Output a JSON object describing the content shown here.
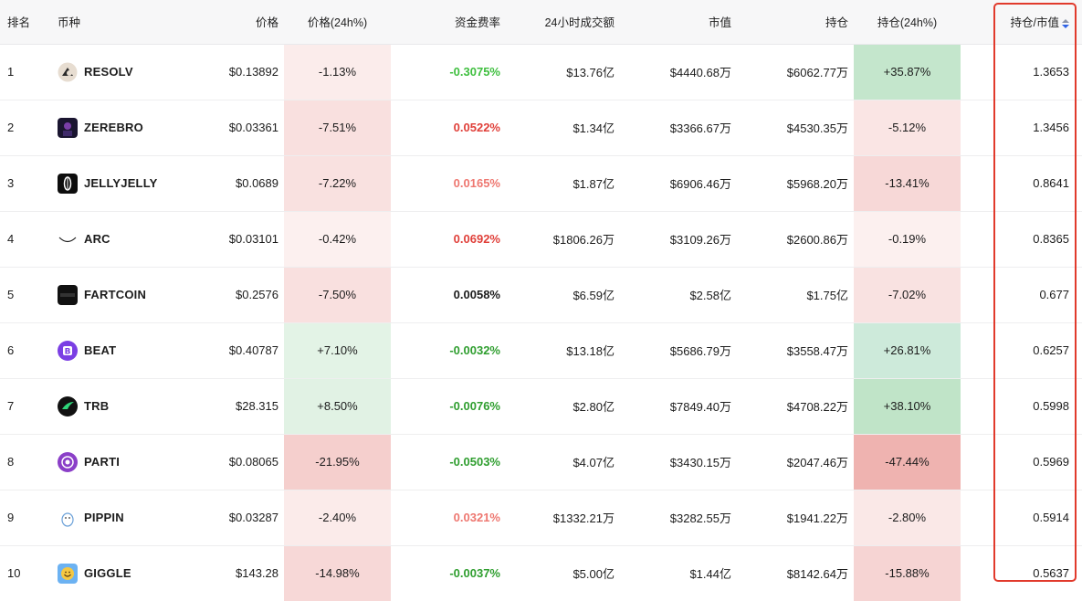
{
  "columns": {
    "rank": "排名",
    "coin": "币种",
    "price": "价格",
    "price_change": "价格(24h%)",
    "funding_rate": "资金费率",
    "volume_24h": "24小时成交额",
    "market_cap": "市值",
    "open_interest": "持仓",
    "oi_change": "持仓(24h%)",
    "oi_mcap": "持仓/市值"
  },
  "colors": {
    "funding_strong_green": "#3fbf3f",
    "funding_green": "#2f9e2f",
    "funding_strong_red": "#e0403a",
    "funding_light_red": "#ee7770",
    "funding_neutral": "#1c1c1c",
    "highlight": "#e13a2c"
  },
  "rows": [
    {
      "rank": "1",
      "symbol": "RESOLV",
      "icon": "resolv-logo-icon",
      "price": "$0.13892",
      "price_change": "-1.13%",
      "price_bg": "#fbeceb",
      "funding": "-0.3075%",
      "funding_color": "#3fbf3f",
      "volume": "$13.76亿",
      "mcap": "$4440.68万",
      "oi": "$6062.77万",
      "oi_change": "+35.87%",
      "oi_bg": "#c4e6cc",
      "ratio": "1.3653"
    },
    {
      "rank": "2",
      "symbol": "ZEREBRO",
      "icon": "zerebro-logo-icon",
      "price": "$0.03361",
      "price_change": "-7.51%",
      "price_bg": "#f9e0df",
      "funding": "0.0522%",
      "funding_color": "#e0403a",
      "volume": "$1.34亿",
      "mcap": "$3366.67万",
      "oi": "$4530.35万",
      "oi_change": "-5.12%",
      "oi_bg": "#fae5e4",
      "ratio": "1.3456"
    },
    {
      "rank": "3",
      "symbol": "JELLYJELLY",
      "icon": "jellyjelly-logo-icon",
      "price": "$0.0689",
      "price_change": "-7.22%",
      "price_bg": "#f9e1e0",
      "funding": "0.0165%",
      "funding_color": "#ee7770",
      "volume": "$1.87亿",
      "mcap": "$6906.46万",
      "oi": "$5968.20万",
      "oi_change": "-13.41%",
      "oi_bg": "#f7d8d7",
      "ratio": "0.8641"
    },
    {
      "rank": "4",
      "symbol": "ARC",
      "icon": "arc-logo-icon",
      "price": "$0.03101",
      "price_change": "-0.42%",
      "price_bg": "#fcf0ef",
      "funding": "0.0692%",
      "funding_color": "#e0403a",
      "volume": "$1806.26万",
      "mcap": "$3109.26万",
      "oi": "$2600.86万",
      "oi_change": "-0.19%",
      "oi_bg": "#fcf0ef",
      "ratio": "0.8365"
    },
    {
      "rank": "5",
      "symbol": "FARTCOIN",
      "icon": "fartcoin-logo-icon",
      "price": "$0.2576",
      "price_change": "-7.50%",
      "price_bg": "#f9e0df",
      "funding": "0.0058%",
      "funding_color": "#1c1c1c",
      "volume": "$6.59亿",
      "mcap": "$2.58亿",
      "oi": "$1.75亿",
      "oi_change": "-7.02%",
      "oi_bg": "#f9e2e1",
      "ratio": "0.677"
    },
    {
      "rank": "6",
      "symbol": "BEAT",
      "icon": "beat-logo-icon",
      "price": "$0.40787",
      "price_change": "+7.10%",
      "price_bg": "#e3f3e6",
      "funding": "-0.0032%",
      "funding_color": "#2f9e2f",
      "volume": "$13.18亿",
      "mcap": "$5686.79万",
      "oi": "$3558.47万",
      "oi_change": "+26.81%",
      "oi_bg": "#cdeada",
      "ratio": "0.6257"
    },
    {
      "rank": "7",
      "symbol": "TRB",
      "icon": "trb-logo-icon",
      "price": "$28.315",
      "price_change": "+8.50%",
      "price_bg": "#e1f2e4",
      "funding": "-0.0076%",
      "funding_color": "#2f9e2f",
      "volume": "$2.80亿",
      "mcap": "$7849.40万",
      "oi": "$4708.22万",
      "oi_change": "+38.10%",
      "oi_bg": "#c0e4c8",
      "ratio": "0.5998"
    },
    {
      "rank": "8",
      "symbol": "PARTI",
      "icon": "parti-logo-icon",
      "price": "$0.08065",
      "price_change": "-21.95%",
      "price_bg": "#f5cfcd",
      "funding": "-0.0503%",
      "funding_color": "#2f9e2f",
      "volume": "$4.07亿",
      "mcap": "$3430.15万",
      "oi": "$2047.46万",
      "oi_change": "-47.44%",
      "oi_bg": "#efb3b0",
      "ratio": "0.5969"
    },
    {
      "rank": "9",
      "symbol": "PIPPIN",
      "icon": "pippin-logo-icon",
      "price": "$0.03287",
      "price_change": "-2.40%",
      "price_bg": "#fbebea",
      "funding": "0.0321%",
      "funding_color": "#ee7770",
      "volume": "$1332.21万",
      "mcap": "$3282.55万",
      "oi": "$1941.22万",
      "oi_change": "-2.80%",
      "oi_bg": "#fae8e7",
      "ratio": "0.5914"
    },
    {
      "rank": "10",
      "symbol": "GIGGLE",
      "icon": "giggle-logo-icon",
      "price": "$143.28",
      "price_change": "-14.98%",
      "price_bg": "#f7d8d7",
      "funding": "-0.0037%",
      "funding_color": "#2f9e2f",
      "volume": "$5.00亿",
      "mcap": "$1.44亿",
      "oi": "$8142.64万",
      "oi_change": "-15.88%",
      "oi_bg": "#f6d4d3",
      "ratio": "0.5637"
    }
  ]
}
